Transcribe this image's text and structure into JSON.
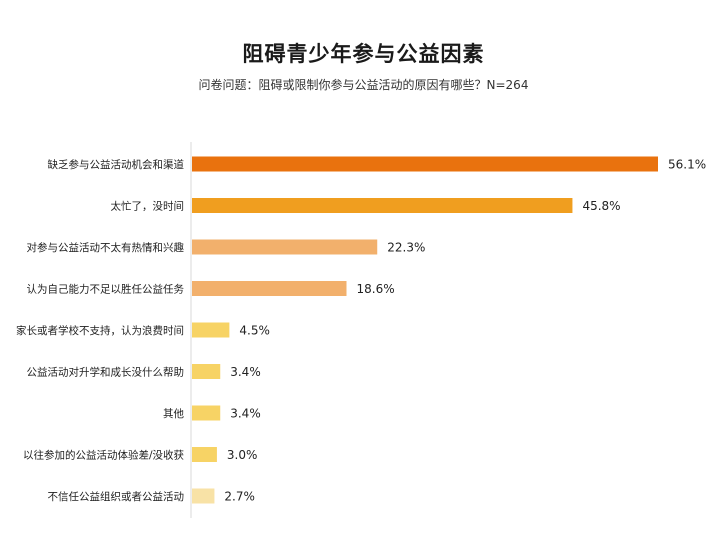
{
  "title": "阻碍青少年参与公益因素",
  "subtitle": "问卷问题：阻碍或限制你参与公益活动的原因有哪些？N=264",
  "chart_data": {
    "type": "bar",
    "orientation": "horizontal",
    "title": "阻碍青少年参与公益因素",
    "subtitle": "问卷问题：阻碍或限制你参与公益活动的原因有哪些？N=264",
    "value_suffix": "%",
    "xlim": [
      0,
      56.1
    ],
    "grid": false,
    "legend": "none",
    "categories": [
      "缺乏参与公益活动机会和渠道",
      "太忙了，没时间",
      "对参与公益活动不太有热情和兴趣",
      "认为自己能力不足以胜任公益任务",
      "家长或者学校不支持，认为浪费时间",
      "公益活动对升学和成长没什么帮助",
      "其他",
      "以往参加的公益活动体验差/没收获",
      "不信任公益组织或者公益活动"
    ],
    "values": [
      56.1,
      45.8,
      22.3,
      18.6,
      4.5,
      3.4,
      3.4,
      3.0,
      2.7
    ],
    "value_labels": [
      "56.1%",
      "45.8%",
      "22.3%",
      "18.6%",
      "4.5%",
      "3.4%",
      "3.4%",
      "3.0%",
      "2.7%"
    ],
    "colors": [
      "#e9720e",
      "#f09e1f",
      "#f2b06c",
      "#f2b06c",
      "#f7d365",
      "#f7d365",
      "#f7d365",
      "#f7d365",
      "#f8e2a6"
    ]
  }
}
